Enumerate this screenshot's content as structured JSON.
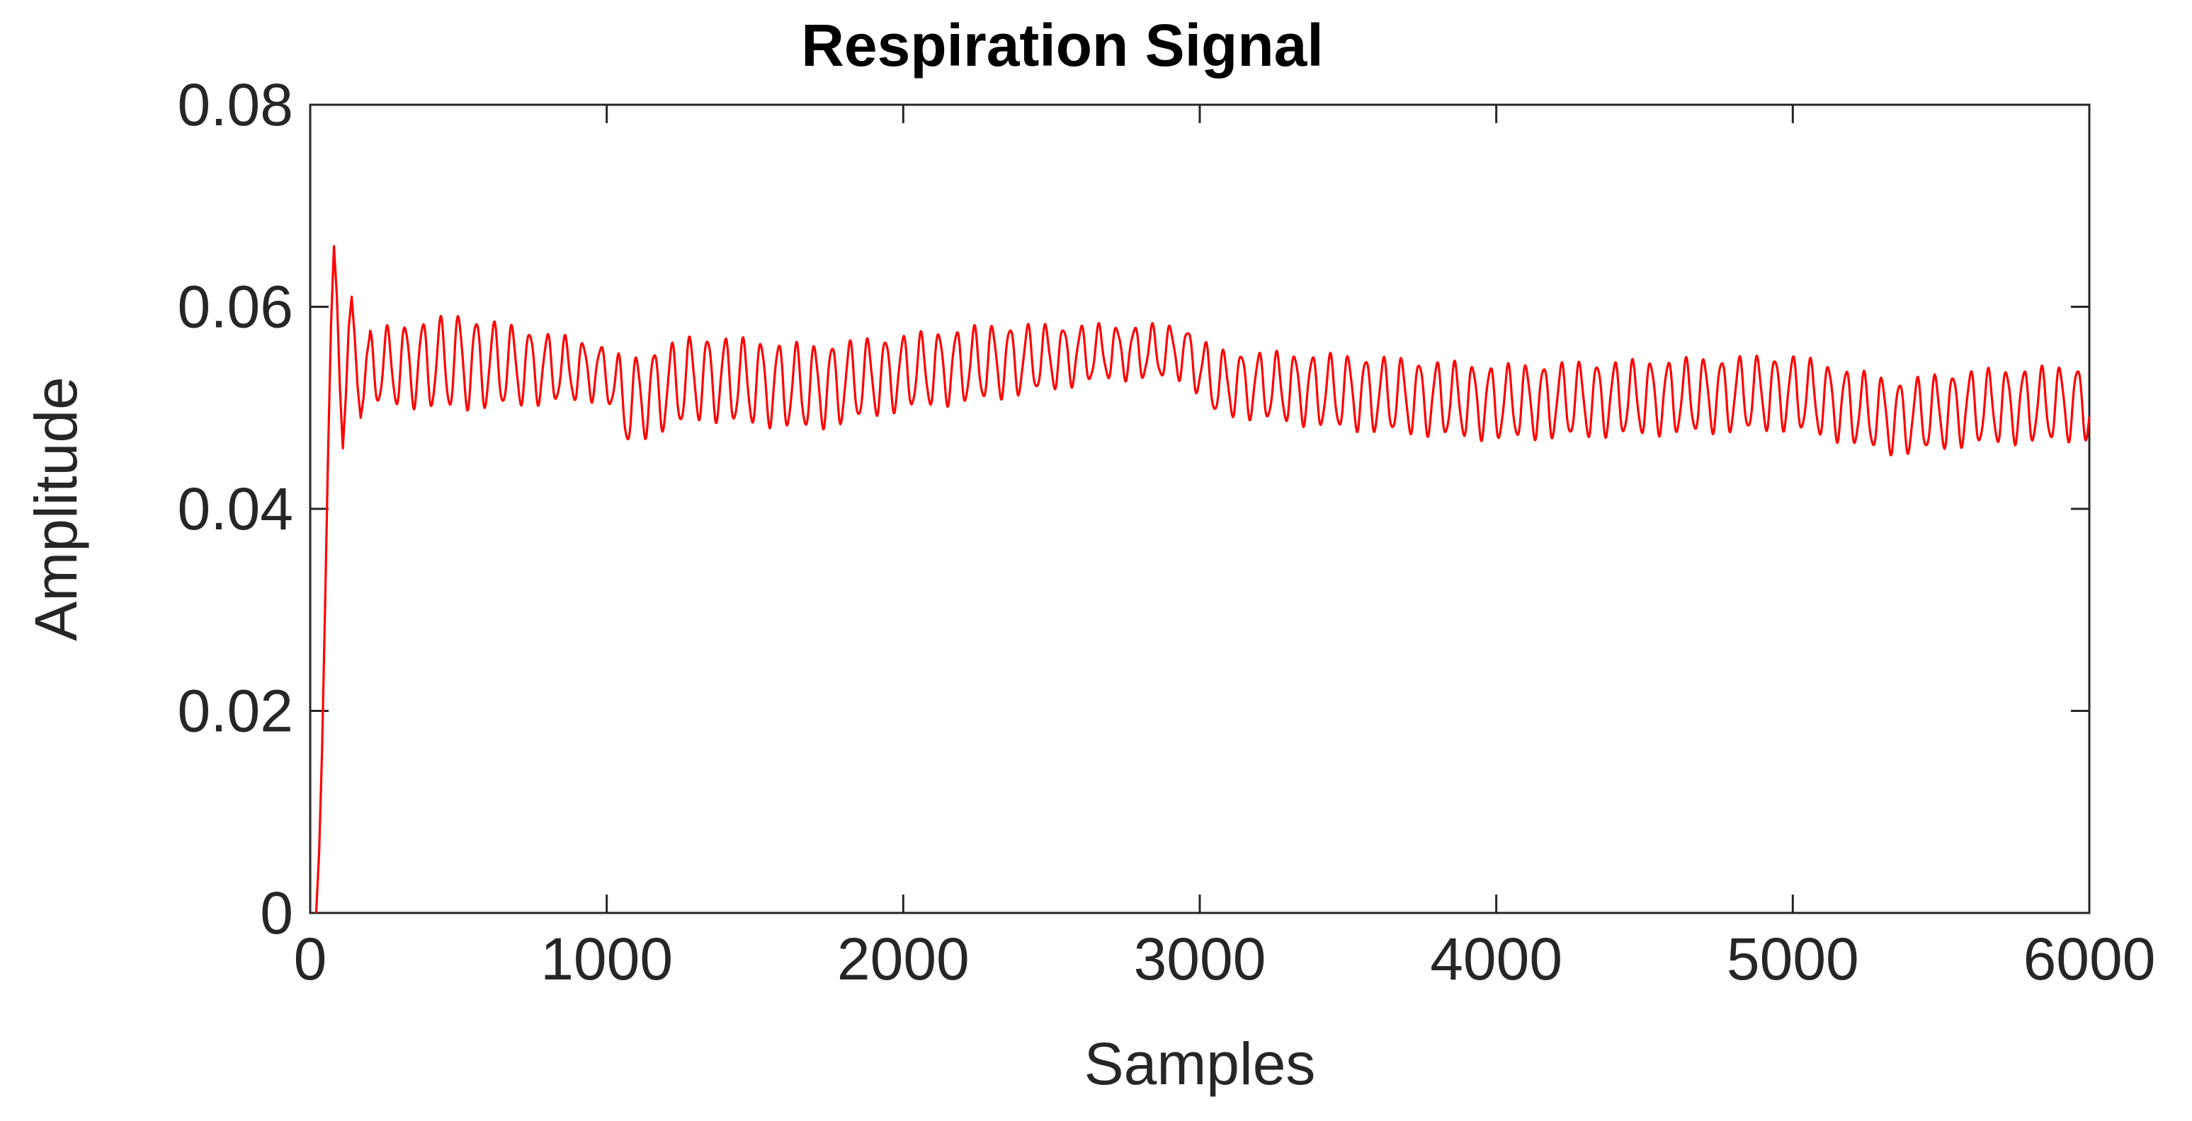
{
  "chart_data": {
    "type": "line",
    "title": "Respiration Signal",
    "xlabel": "Samples",
    "ylabel": "Amplitude",
    "xlim": [
      0,
      6000
    ],
    "ylim": [
      0,
      0.08
    ],
    "xticks": [
      0,
      1000,
      2000,
      3000,
      4000,
      5000,
      6000
    ],
    "xtick_labels": [
      "0",
      "1000",
      "2000",
      "3000",
      "4000",
      "5000",
      "6000"
    ],
    "yticks": [
      0,
      0.02,
      0.04,
      0.06,
      0.08
    ],
    "ytick_labels": [
      "0",
      "0.02",
      "0.04",
      "0.06",
      "0.08"
    ],
    "grid": false,
    "legend": "none",
    "line_color": "#ff0000",
    "series": [
      {
        "x": [
          20,
          30,
          40,
          50,
          60,
          70,
          80,
          90,
          100,
          110,
          120,
          130,
          140,
          150,
          160,
          170,
          180,
          190,
          200
        ],
        "y": [
          0.0,
          0.006,
          0.016,
          0.03,
          0.045,
          0.058,
          0.066,
          0.061,
          0.052,
          0.046,
          0.051,
          0.058,
          0.061,
          0.057,
          0.052,
          0.049,
          0.051,
          0.055,
          0.057
        ]
      }
    ],
    "envelope_points": {
      "x": [
        200,
        500,
        1000,
        1060,
        1300,
        1700,
        2000,
        2300,
        2700,
        2950,
        3050,
        3500,
        4000,
        4500,
        5000,
        5350,
        5600,
        6000
      ],
      "center": [
        0.054,
        0.0545,
        0.0535,
        0.0505,
        0.053,
        0.052,
        0.0535,
        0.0545,
        0.0555,
        0.0555,
        0.0525,
        0.0515,
        0.0505,
        0.051,
        0.0515,
        0.049,
        0.05,
        0.0505
      ],
      "amplitude": [
        0.0035,
        0.0045,
        0.0025,
        0.004,
        0.004,
        0.004,
        0.0035,
        0.0035,
        0.0025,
        0.0025,
        0.003,
        0.0035,
        0.0035,
        0.0035,
        0.0035,
        0.0035,
        0.0035,
        0.0035
      ],
      "period_samples": 60
    }
  }
}
